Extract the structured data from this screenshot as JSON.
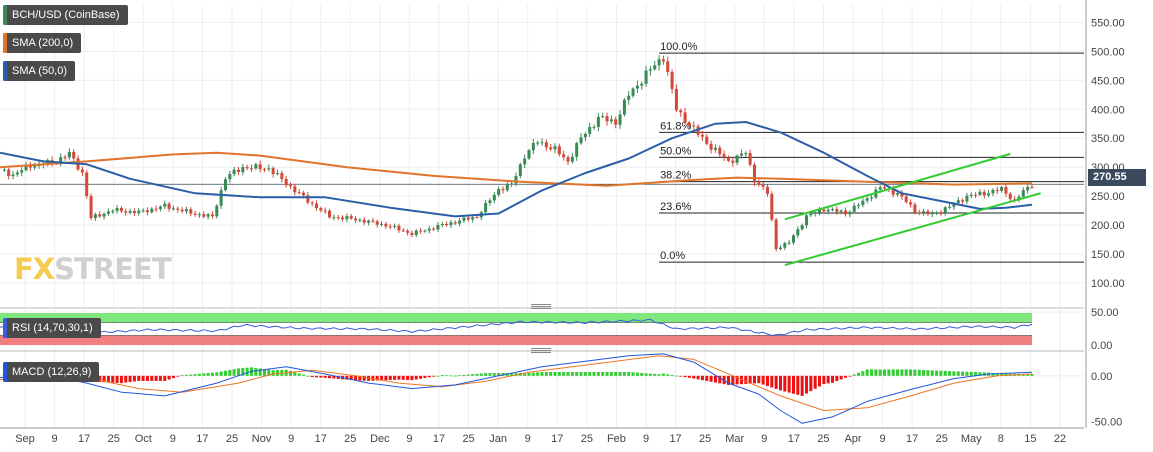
{
  "legend": {
    "symbol": "BCH/USD (CoinBase)",
    "sma200": "SMA (200,0)",
    "sma50": "SMA (50,0)",
    "rsi": "RSI (14,70,30,1)",
    "macd": "MACD (12,26,9)"
  },
  "colors": {
    "up": "#3a8a56",
    "down": "#d14a3a",
    "sma200": "#e0742a",
    "sma50": "#2a5fa8",
    "channel": "#33cc33",
    "rsi_line": "#3b5bd6",
    "rsi_upper_band": "#7ee87e",
    "rsi_lower_band": "#f08080",
    "macd_line": "#2255dd",
    "signal_line": "#ee7722",
    "hist_pos": "#33cc33",
    "hist_neg": "#ee1111"
  },
  "logo": {
    "prefix": "FX",
    "suffix": "STREET"
  },
  "last_price": "270.55",
  "chart_data": [
    {
      "type": "candlestick",
      "title": "BCH/USD (CoinBase)",
      "ylim": [
        50,
        580
      ],
      "y_ticks": [
        50,
        100,
        150,
        200,
        250,
        300,
        350,
        400,
        450,
        500,
        550
      ],
      "x_tick_labels": [
        "Sep",
        "9",
        "17",
        "25",
        "Oct",
        "9",
        "17",
        "25",
        "Nov",
        "9",
        "17",
        "25",
        "Dec",
        "9",
        "17",
        "25",
        "Jan",
        "9",
        "17",
        "25",
        "Feb",
        "9",
        "17",
        "25",
        "Mar",
        "9",
        "17",
        "25",
        "Apr",
        "9",
        "17",
        "25",
        "May",
        "8",
        "15",
        "22"
      ],
      "price_path": [
        {
          "t": 0,
          "v": 295
        },
        {
          "t": 3,
          "v": 287
        },
        {
          "t": 7,
          "v": 303
        },
        {
          "t": 12,
          "v": 308
        },
        {
          "t": 16,
          "v": 323
        },
        {
          "t": 19,
          "v": 290
        },
        {
          "t": 21,
          "v": 212
        },
        {
          "t": 26,
          "v": 226
        },
        {
          "t": 32,
          "v": 222
        },
        {
          "t": 38,
          "v": 233
        },
        {
          "t": 44,
          "v": 221
        },
        {
          "t": 49,
          "v": 214
        },
        {
          "t": 52,
          "v": 282
        },
        {
          "t": 56,
          "v": 300
        },
        {
          "t": 62,
          "v": 298
        },
        {
          "t": 66,
          "v": 272
        },
        {
          "t": 71,
          "v": 242
        },
        {
          "t": 76,
          "v": 215
        },
        {
          "t": 82,
          "v": 210
        },
        {
          "t": 89,
          "v": 200
        },
        {
          "t": 95,
          "v": 185
        },
        {
          "t": 102,
          "v": 200
        },
        {
          "t": 110,
          "v": 215
        },
        {
          "t": 115,
          "v": 262
        },
        {
          "t": 118,
          "v": 270
        },
        {
          "t": 121,
          "v": 320
        },
        {
          "t": 124,
          "v": 345
        },
        {
          "t": 128,
          "v": 330
        },
        {
          "t": 131,
          "v": 310
        },
        {
          "t": 134,
          "v": 350
        },
        {
          "t": 138,
          "v": 385
        },
        {
          "t": 142,
          "v": 378
        },
        {
          "t": 145,
          "v": 425
        },
        {
          "t": 149,
          "v": 460
        },
        {
          "t": 153,
          "v": 492
        },
        {
          "t": 156,
          "v": 400
        },
        {
          "t": 160,
          "v": 365
        },
        {
          "t": 164,
          "v": 335
        },
        {
          "t": 168,
          "v": 310
        },
        {
          "t": 172,
          "v": 325
        },
        {
          "t": 174,
          "v": 278
        },
        {
          "t": 177,
          "v": 255
        },
        {
          "t": 179,
          "v": 160
        },
        {
          "t": 182,
          "v": 170
        },
        {
          "t": 186,
          "v": 215
        },
        {
          "t": 190,
          "v": 228
        },
        {
          "t": 195,
          "v": 221
        },
        {
          "t": 199,
          "v": 240
        },
        {
          "t": 203,
          "v": 265
        },
        {
          "t": 207,
          "v": 255
        },
        {
          "t": 211,
          "v": 225
        },
        {
          "t": 215,
          "v": 218
        },
        {
          "t": 219,
          "v": 232
        },
        {
          "t": 223,
          "v": 250
        },
        {
          "t": 227,
          "v": 255
        },
        {
          "t": 231,
          "v": 262
        },
        {
          "t": 234,
          "v": 242
        },
        {
          "t": 236,
          "v": 258
        },
        {
          "t": 238,
          "v": 270
        }
      ],
      "sma200_path": [
        {
          "t": 0,
          "v": 300
        },
        {
          "t": 20,
          "v": 310
        },
        {
          "t": 40,
          "v": 322
        },
        {
          "t": 50,
          "v": 325
        },
        {
          "t": 60,
          "v": 320
        },
        {
          "t": 80,
          "v": 300
        },
        {
          "t": 100,
          "v": 285
        },
        {
          "t": 120,
          "v": 275
        },
        {
          "t": 140,
          "v": 268
        },
        {
          "t": 160,
          "v": 278
        },
        {
          "t": 170,
          "v": 282
        },
        {
          "t": 180,
          "v": 280
        },
        {
          "t": 200,
          "v": 275
        },
        {
          "t": 220,
          "v": 270
        },
        {
          "t": 238,
          "v": 272
        }
      ],
      "sma50_path": [
        {
          "t": 0,
          "v": 325
        },
        {
          "t": 10,
          "v": 310
        },
        {
          "t": 20,
          "v": 305
        },
        {
          "t": 30,
          "v": 280
        },
        {
          "t": 45,
          "v": 255
        },
        {
          "t": 60,
          "v": 248
        },
        {
          "t": 75,
          "v": 248
        },
        {
          "t": 90,
          "v": 230
        },
        {
          "t": 105,
          "v": 215
        },
        {
          "t": 115,
          "v": 220
        },
        {
          "t": 125,
          "v": 260
        },
        {
          "t": 135,
          "v": 290
        },
        {
          "t": 145,
          "v": 315
        },
        {
          "t": 155,
          "v": 350
        },
        {
          "t": 165,
          "v": 375
        },
        {
          "t": 172,
          "v": 378
        },
        {
          "t": 180,
          "v": 360
        },
        {
          "t": 190,
          "v": 325
        },
        {
          "t": 200,
          "v": 285
        },
        {
          "t": 208,
          "v": 255
        },
        {
          "t": 218,
          "v": 240
        },
        {
          "t": 226,
          "v": 228
        },
        {
          "t": 232,
          "v": 230
        },
        {
          "t": 238,
          "v": 235
        }
      ],
      "fibonacci": [
        {
          "label": "100.0%",
          "value": 497
        },
        {
          "label": "61.8%",
          "value": 360
        },
        {
          "label": "50.0%",
          "value": 317
        },
        {
          "label": "38.2%",
          "value": 275
        },
        {
          "label": "23.6%",
          "value": 221
        },
        {
          "label": "0.0%",
          "value": 136
        }
      ],
      "channel_lines": [
        {
          "t1": 181,
          "v1": 210,
          "t2": 233,
          "v2": 323
        },
        {
          "t1": 181,
          "v1": 131,
          "t2": 240,
          "v2": 255
        }
      ]
    },
    {
      "type": "line",
      "title": "RSI (14,70,30,1)",
      "ylim": [
        0,
        100
      ],
      "y_ticks": [
        0
      ],
      "y_tick_labels": [
        "0.00"
      ],
      "bands": {
        "upper": 70,
        "lower": 30
      },
      "rsi_path": [
        {
          "t": 0,
          "v": 55
        },
        {
          "t": 15,
          "v": 62
        },
        {
          "t": 21,
          "v": 38
        },
        {
          "t": 35,
          "v": 48
        },
        {
          "t": 50,
          "v": 44
        },
        {
          "t": 56,
          "v": 62
        },
        {
          "t": 70,
          "v": 52
        },
        {
          "t": 85,
          "v": 50
        },
        {
          "t": 95,
          "v": 42
        },
        {
          "t": 110,
          "v": 60
        },
        {
          "t": 120,
          "v": 72
        },
        {
          "t": 135,
          "v": 70
        },
        {
          "t": 150,
          "v": 78
        },
        {
          "t": 156,
          "v": 50
        },
        {
          "t": 168,
          "v": 55
        },
        {
          "t": 179,
          "v": 30
        },
        {
          "t": 186,
          "v": 48
        },
        {
          "t": 200,
          "v": 55
        },
        {
          "t": 212,
          "v": 50
        },
        {
          "t": 225,
          "v": 58
        },
        {
          "t": 234,
          "v": 55
        },
        {
          "t": 238,
          "v": 65
        }
      ]
    },
    {
      "type": "bar",
      "title": "MACD (12,26,9)",
      "ylim": [
        -55,
        25
      ],
      "y_ticks": [
        0,
        -50
      ],
      "y_tick_labels": [
        "0.00",
        "-50.00"
      ],
      "macd_path": [
        {
          "t": 0,
          "v": -2
        },
        {
          "t": 12,
          "v": 0
        },
        {
          "t": 20,
          "v": -8
        },
        {
          "t": 28,
          "v": -18
        },
        {
          "t": 38,
          "v": -22
        },
        {
          "t": 50,
          "v": -8
        },
        {
          "t": 58,
          "v": 5
        },
        {
          "t": 66,
          "v": 10
        },
        {
          "t": 75,
          "v": 2
        },
        {
          "t": 85,
          "v": -8
        },
        {
          "t": 95,
          "v": -14
        },
        {
          "t": 105,
          "v": -10
        },
        {
          "t": 115,
          "v": 0
        },
        {
          "t": 125,
          "v": 10
        },
        {
          "t": 135,
          "v": 16
        },
        {
          "t": 145,
          "v": 22
        },
        {
          "t": 153,
          "v": 24
        },
        {
          "t": 160,
          "v": 15
        },
        {
          "t": 168,
          "v": -8
        },
        {
          "t": 175,
          "v": -20
        },
        {
          "t": 180,
          "v": -38
        },
        {
          "t": 185,
          "v": -52
        },
        {
          "t": 192,
          "v": -45
        },
        {
          "t": 200,
          "v": -28
        },
        {
          "t": 210,
          "v": -15
        },
        {
          "t": 220,
          "v": -3
        },
        {
          "t": 228,
          "v": 2
        },
        {
          "t": 238,
          "v": 4
        }
      ],
      "signal_path": [
        {
          "t": 0,
          "v": -4
        },
        {
          "t": 12,
          "v": -2
        },
        {
          "t": 22,
          "v": -4
        },
        {
          "t": 32,
          "v": -14
        },
        {
          "t": 42,
          "v": -18
        },
        {
          "t": 55,
          "v": -8
        },
        {
          "t": 63,
          "v": 2
        },
        {
          "t": 72,
          "v": 6
        },
        {
          "t": 82,
          "v": 0
        },
        {
          "t": 92,
          "v": -8
        },
        {
          "t": 102,
          "v": -12
        },
        {
          "t": 112,
          "v": -6
        },
        {
          "t": 122,
          "v": 4
        },
        {
          "t": 132,
          "v": 10
        },
        {
          "t": 142,
          "v": 16
        },
        {
          "t": 152,
          "v": 22
        },
        {
          "t": 160,
          "v": 18
        },
        {
          "t": 170,
          "v": -2
        },
        {
          "t": 180,
          "v": -22
        },
        {
          "t": 190,
          "v": -38
        },
        {
          "t": 200,
          "v": -35
        },
        {
          "t": 210,
          "v": -22
        },
        {
          "t": 220,
          "v": -8
        },
        {
          "t": 230,
          "v": 0
        },
        {
          "t": 238,
          "v": 2
        }
      ]
    }
  ]
}
